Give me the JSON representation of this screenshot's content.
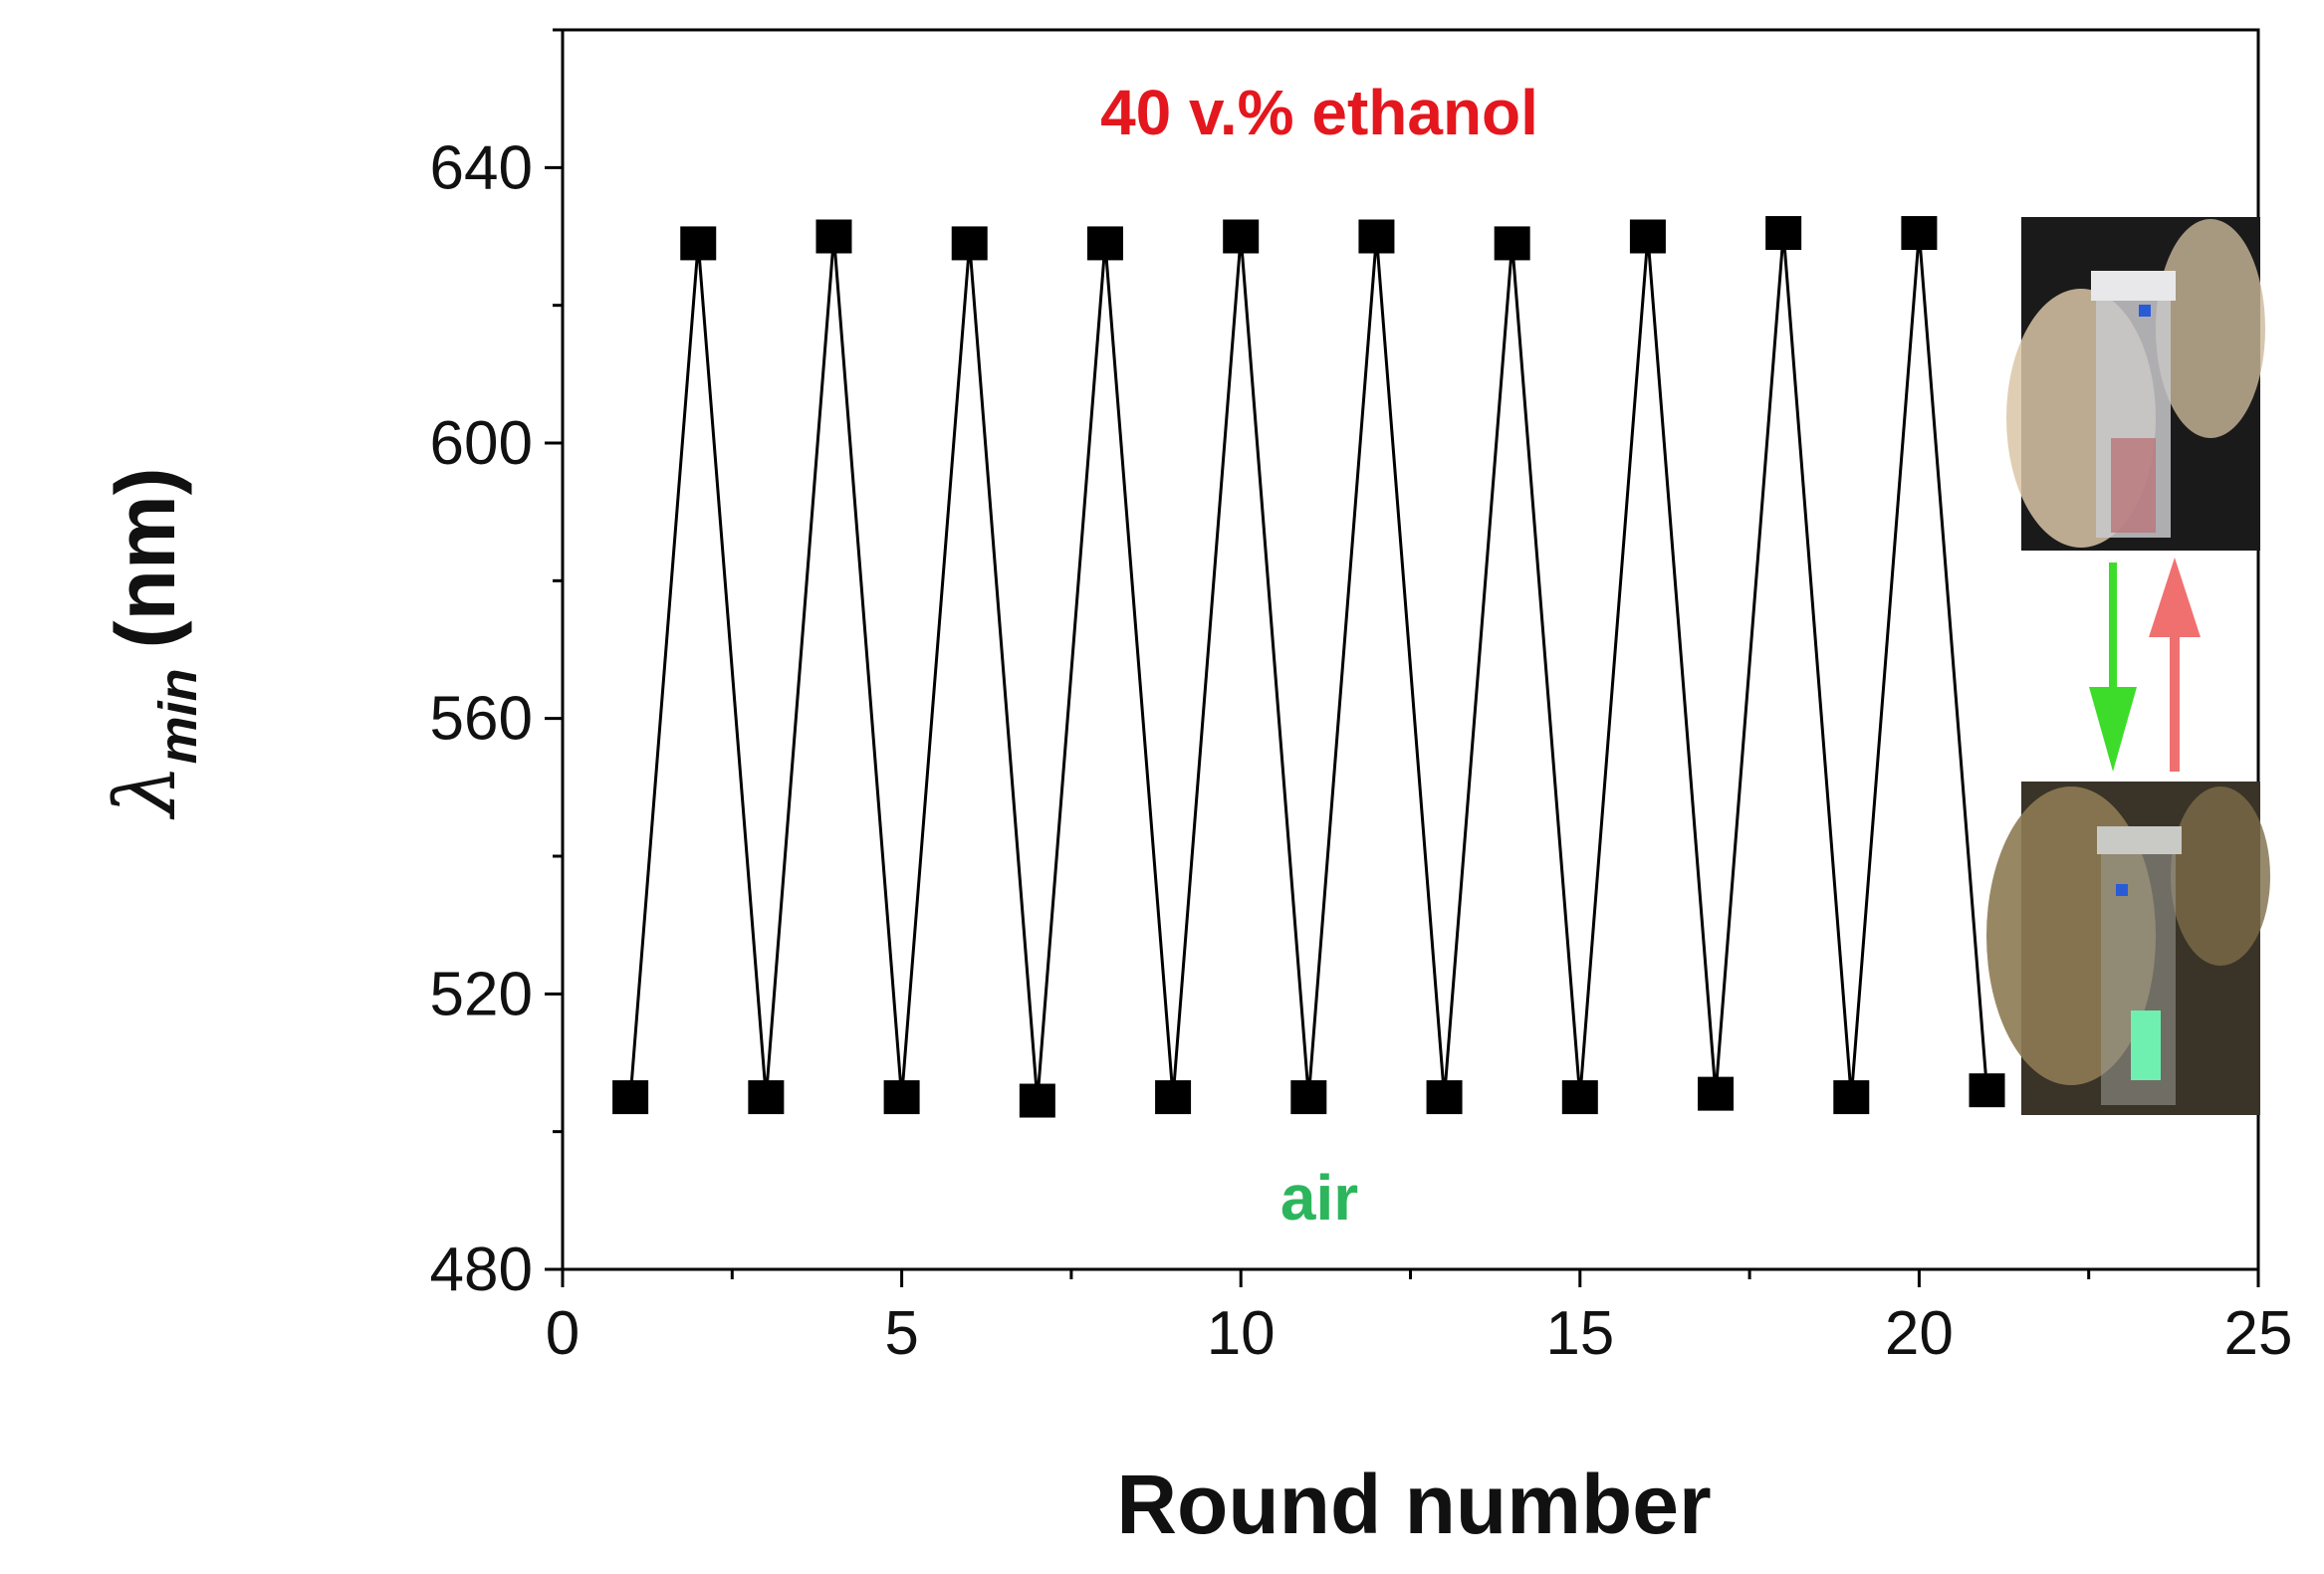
{
  "chart_data": {
    "type": "line",
    "title": "",
    "xlabel": "Round number",
    "ylabel_symbol": "λ",
    "ylabel_subscript": "min",
    "ylabel_unit": "(nm)",
    "xlim": [
      0,
      25
    ],
    "ylim": [
      480,
      660
    ],
    "xticks": [
      0,
      5,
      10,
      15,
      20,
      25
    ],
    "yticks": [
      480,
      520,
      560,
      600,
      640
    ],
    "grid": false,
    "legend": "none",
    "marker": "square",
    "line_color": "#000000",
    "marker_color": "#000000",
    "series": [
      {
        "x": [
          1,
          2,
          3,
          4,
          5,
          6,
          7,
          8,
          9,
          10,
          11,
          12,
          13,
          14,
          15,
          16,
          17,
          18,
          19,
          20,
          21
        ],
        "y": [
          505,
          629,
          505,
          630,
          505,
          629,
          504.5,
          629,
          505,
          630,
          505,
          630,
          505,
          629,
          505,
          630,
          505.5,
          630.5,
          505,
          630.5,
          506
        ]
      }
    ],
    "annotations": [
      {
        "text": "40 v.% ethanol",
        "color": "#e3171d"
      },
      {
        "text": "air",
        "color": "#2db55d"
      }
    ],
    "inset": {
      "arrow_down_color": "#3ddc2a",
      "arrow_up_color": "#f07070"
    }
  }
}
